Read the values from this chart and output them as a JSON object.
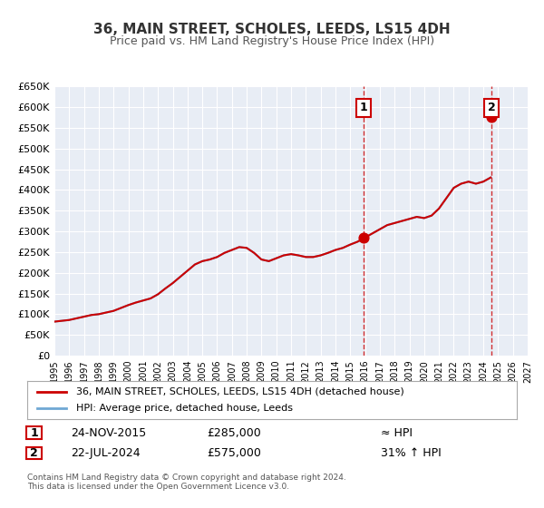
{
  "title": "36, MAIN STREET, SCHOLES, LEEDS, LS15 4DH",
  "subtitle": "Price paid vs. HM Land Registry's House Price Index (HPI)",
  "legend_line1": "36, MAIN STREET, SCHOLES, LEEDS, LS15 4DH (detached house)",
  "legend_line2": "HPI: Average price, detached house, Leeds",
  "annotation1_label": "1",
  "annotation1_date": "24-NOV-2015",
  "annotation1_price": "£285,000",
  "annotation1_hpi": "≈ HPI",
  "annotation2_label": "2",
  "annotation2_date": "22-JUL-2024",
  "annotation2_price": "£575,000",
  "annotation2_hpi": "31% ↑ HPI",
  "footer1": "Contains HM Land Registry data © Crown copyright and database right 2024.",
  "footer2": "This data is licensed under the Open Government Licence v3.0.",
  "hpi_color": "#6fa8d4",
  "price_color": "#cc0000",
  "background_plot": "#e8edf5",
  "background_fig": "#ffffff",
  "grid_color": "#ffffff",
  "ylim": [
    0,
    650000
  ],
  "xlim_start": 1995.0,
  "xlim_end": 2027.0,
  "marker1_x": 2015.9,
  "marker1_y": 285000,
  "marker2_x": 2024.55,
  "marker2_y": 575000,
  "vline1_x": 2015.9,
  "vline2_x": 2024.55,
  "hpi_data_x": [
    1995.0,
    1995.5,
    1996.0,
    1996.5,
    1997.0,
    1997.5,
    1998.0,
    1998.5,
    1999.0,
    1999.5,
    2000.0,
    2000.5,
    2001.0,
    2001.5,
    2002.0,
    2002.5,
    2003.0,
    2003.5,
    2004.0,
    2004.5,
    2005.0,
    2005.5,
    2006.0,
    2006.5,
    2007.0,
    2007.5,
    2008.0,
    2008.5,
    2009.0,
    2009.5,
    2010.0,
    2010.5,
    2011.0,
    2011.5,
    2012.0,
    2012.5,
    2013.0,
    2013.5,
    2014.0,
    2014.5,
    2015.0,
    2015.5,
    2016.0,
    2016.5,
    2017.0,
    2017.5,
    2018.0,
    2018.5,
    2019.0,
    2019.5,
    2020.0,
    2020.5,
    2021.0,
    2021.5,
    2022.0,
    2022.5,
    2023.0,
    2023.5,
    2024.0,
    2024.5
  ],
  "hpi_data_y": [
    82000,
    84000,
    86000,
    90000,
    94000,
    98000,
    100000,
    104000,
    108000,
    115000,
    122000,
    128000,
    133000,
    138000,
    148000,
    162000,
    175000,
    190000,
    205000,
    220000,
    228000,
    232000,
    238000,
    248000,
    255000,
    262000,
    260000,
    248000,
    232000,
    228000,
    235000,
    242000,
    245000,
    242000,
    238000,
    238000,
    242000,
    248000,
    255000,
    260000,
    268000,
    275000,
    285000,
    295000,
    305000,
    315000,
    320000,
    325000,
    330000,
    335000,
    332000,
    338000,
    355000,
    380000,
    405000,
    415000,
    420000,
    415000,
    420000,
    430000
  ],
  "yticks": [
    0,
    50000,
    100000,
    150000,
    200000,
    250000,
    300000,
    350000,
    400000,
    450000,
    500000,
    550000,
    600000,
    650000
  ],
  "ytick_labels": [
    "£0",
    "£50K",
    "£100K",
    "£150K",
    "£200K",
    "£250K",
    "£300K",
    "£350K",
    "£400K",
    "£450K",
    "£500K",
    "£550K",
    "£600K",
    "£650K"
  ]
}
